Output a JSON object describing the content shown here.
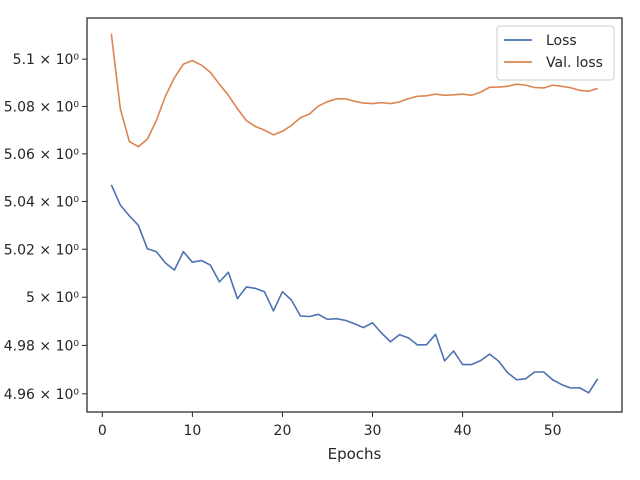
{
  "chart_data": {
    "type": "line",
    "title": "",
    "xlabel": "Epochs",
    "ylabel": "",
    "xlim": [
      -1.7,
      57.7
    ],
    "ylim": [
      4.9525,
      5.1175
    ],
    "y_scale": "log",
    "grid": false,
    "legend_position": "top-right",
    "x_ticks": [
      {
        "value": 0,
        "label": "0"
      },
      {
        "value": 10,
        "label": "10"
      },
      {
        "value": 20,
        "label": "20"
      },
      {
        "value": 30,
        "label": "30"
      },
      {
        "value": 40,
        "label": "40"
      },
      {
        "value": 50,
        "label": "50"
      }
    ],
    "y_ticks": [
      {
        "value": 4.96,
        "label": "4.96 × 10⁰"
      },
      {
        "value": 4.98,
        "label": "4.98 × 10⁰"
      },
      {
        "value": 5.0,
        "label": "5 × 10⁰"
      },
      {
        "value": 5.02,
        "label": "5.02 × 10⁰"
      },
      {
        "value": 5.04,
        "label": "5.04 × 10⁰"
      },
      {
        "value": 5.06,
        "label": "5.06 × 10⁰"
      },
      {
        "value": 5.08,
        "label": "5.08 × 10⁰"
      },
      {
        "value": 5.1,
        "label": "5.1 × 10⁰"
      }
    ],
    "x": [
      1,
      2,
      3,
      4,
      5,
      6,
      7,
      8,
      9,
      10,
      11,
      12,
      13,
      14,
      15,
      16,
      17,
      18,
      19,
      20,
      21,
      22,
      23,
      24,
      25,
      26,
      27,
      28,
      29,
      30,
      31,
      32,
      33,
      34,
      35,
      36,
      37,
      38,
      39,
      40,
      41,
      42,
      43,
      44,
      45,
      46,
      47,
      48,
      49,
      50,
      51,
      52,
      53,
      54,
      55
    ],
    "series": [
      {
        "name": "Loss",
        "color": "#4c72b0",
        "values": [
          5.047,
          5.0385,
          5.034,
          5.03,
          5.0202,
          5.019,
          5.0143,
          5.0113,
          5.019,
          5.0146,
          5.0153,
          5.0134,
          5.0064,
          5.0104,
          4.9994,
          5.0043,
          5.0037,
          5.0023,
          4.9943,
          5.0023,
          4.9988,
          4.9922,
          4.992,
          4.9929,
          4.9908,
          4.9911,
          4.9904,
          4.989,
          4.9874,
          4.9894,
          4.9851,
          4.9815,
          4.9845,
          4.9831,
          4.9802,
          4.9803,
          4.9846,
          4.9736,
          4.9777,
          4.9721,
          4.9721,
          4.9737,
          4.9764,
          4.9735,
          4.9687,
          4.9658,
          4.9662,
          4.969,
          4.969,
          4.9658,
          4.9638,
          4.9624,
          4.9625,
          4.9604,
          4.9662
        ]
      },
      {
        "name": "Val. loss",
        "color": "#dd8452",
        "values": [
          5.1108,
          5.079,
          5.0652,
          5.063,
          5.0662,
          5.074,
          5.0843,
          5.0921,
          5.0979,
          5.0994,
          5.0975,
          5.0944,
          5.0894,
          5.0847,
          5.079,
          5.074,
          5.0715,
          5.07,
          5.068,
          5.0695,
          5.072,
          5.0752,
          5.0768,
          5.0802,
          5.082,
          5.0832,
          5.0832,
          5.0822,
          5.0814,
          5.0812,
          5.0816,
          5.0812,
          5.0819,
          5.0833,
          5.0843,
          5.0845,
          5.0852,
          5.0847,
          5.0849,
          5.0852,
          5.0847,
          5.086,
          5.0881,
          5.0882,
          5.0885,
          5.0894,
          5.089,
          5.088,
          5.0878,
          5.089,
          5.0885,
          5.0879,
          5.0868,
          5.0864,
          5.0876
        ]
      }
    ]
  }
}
